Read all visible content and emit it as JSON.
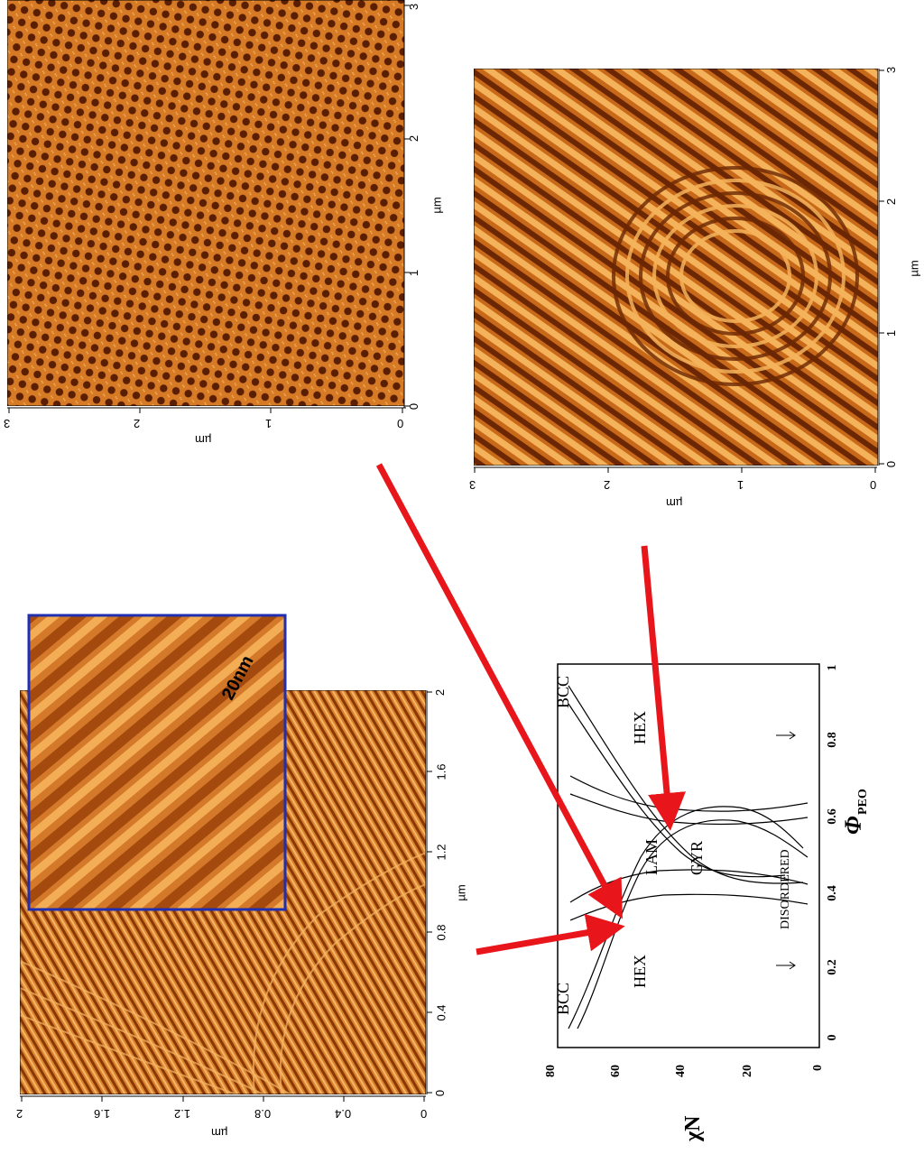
{
  "colors": {
    "afm_dark": "#5a1e02",
    "afm_mid": "#c8691a",
    "afm_light": "#f4b35a",
    "inset_border": "#1f2fb0",
    "arrow": "#e8151a",
    "axis": "#000000"
  },
  "afm_top_right": {
    "axis_x_ticks": [
      "0",
      "1",
      "2",
      "3"
    ],
    "axis_x_label": "µm",
    "axis_y_ticks": [
      "0",
      "1",
      "2",
      "3"
    ],
    "axis_y_label": "µm"
  },
  "afm_mid_right": {
    "axis_x_ticks": [
      "0",
      "1",
      "2",
      "3"
    ],
    "axis_x_label": "µm",
    "axis_y_ticks": [
      "0",
      "1",
      "2",
      "3"
    ],
    "axis_y_label": "µm"
  },
  "afm_bottom_left": {
    "axis_x_ticks": [
      "0",
      "0.4",
      "0.8",
      "1.2",
      "1.6",
      "2"
    ],
    "axis_x_label": "µm",
    "axis_y_ticks": [
      "0",
      "0.4",
      "0.8",
      "1.2",
      "1.6",
      "2"
    ],
    "axis_y_label": "µm",
    "inset_scale_label": "20nm"
  },
  "phase_diagram": {
    "x_axis_label": "Φ",
    "x_axis_subscript": "PEO",
    "y_axis_label": "χN",
    "x_ticks": [
      "0",
      "0.2",
      "0.4",
      "0.6",
      "0.8",
      "1"
    ],
    "y_ticks": [
      "0",
      "20",
      "40",
      "60",
      "80"
    ],
    "region_labels": {
      "bcc_left": "BCC",
      "bcc_right": "BCC",
      "hex_left": "HEX",
      "hex_right": "HEX",
      "lam": "LAM",
      "gyr": "GYR",
      "disordered": "DISORDERED"
    }
  }
}
